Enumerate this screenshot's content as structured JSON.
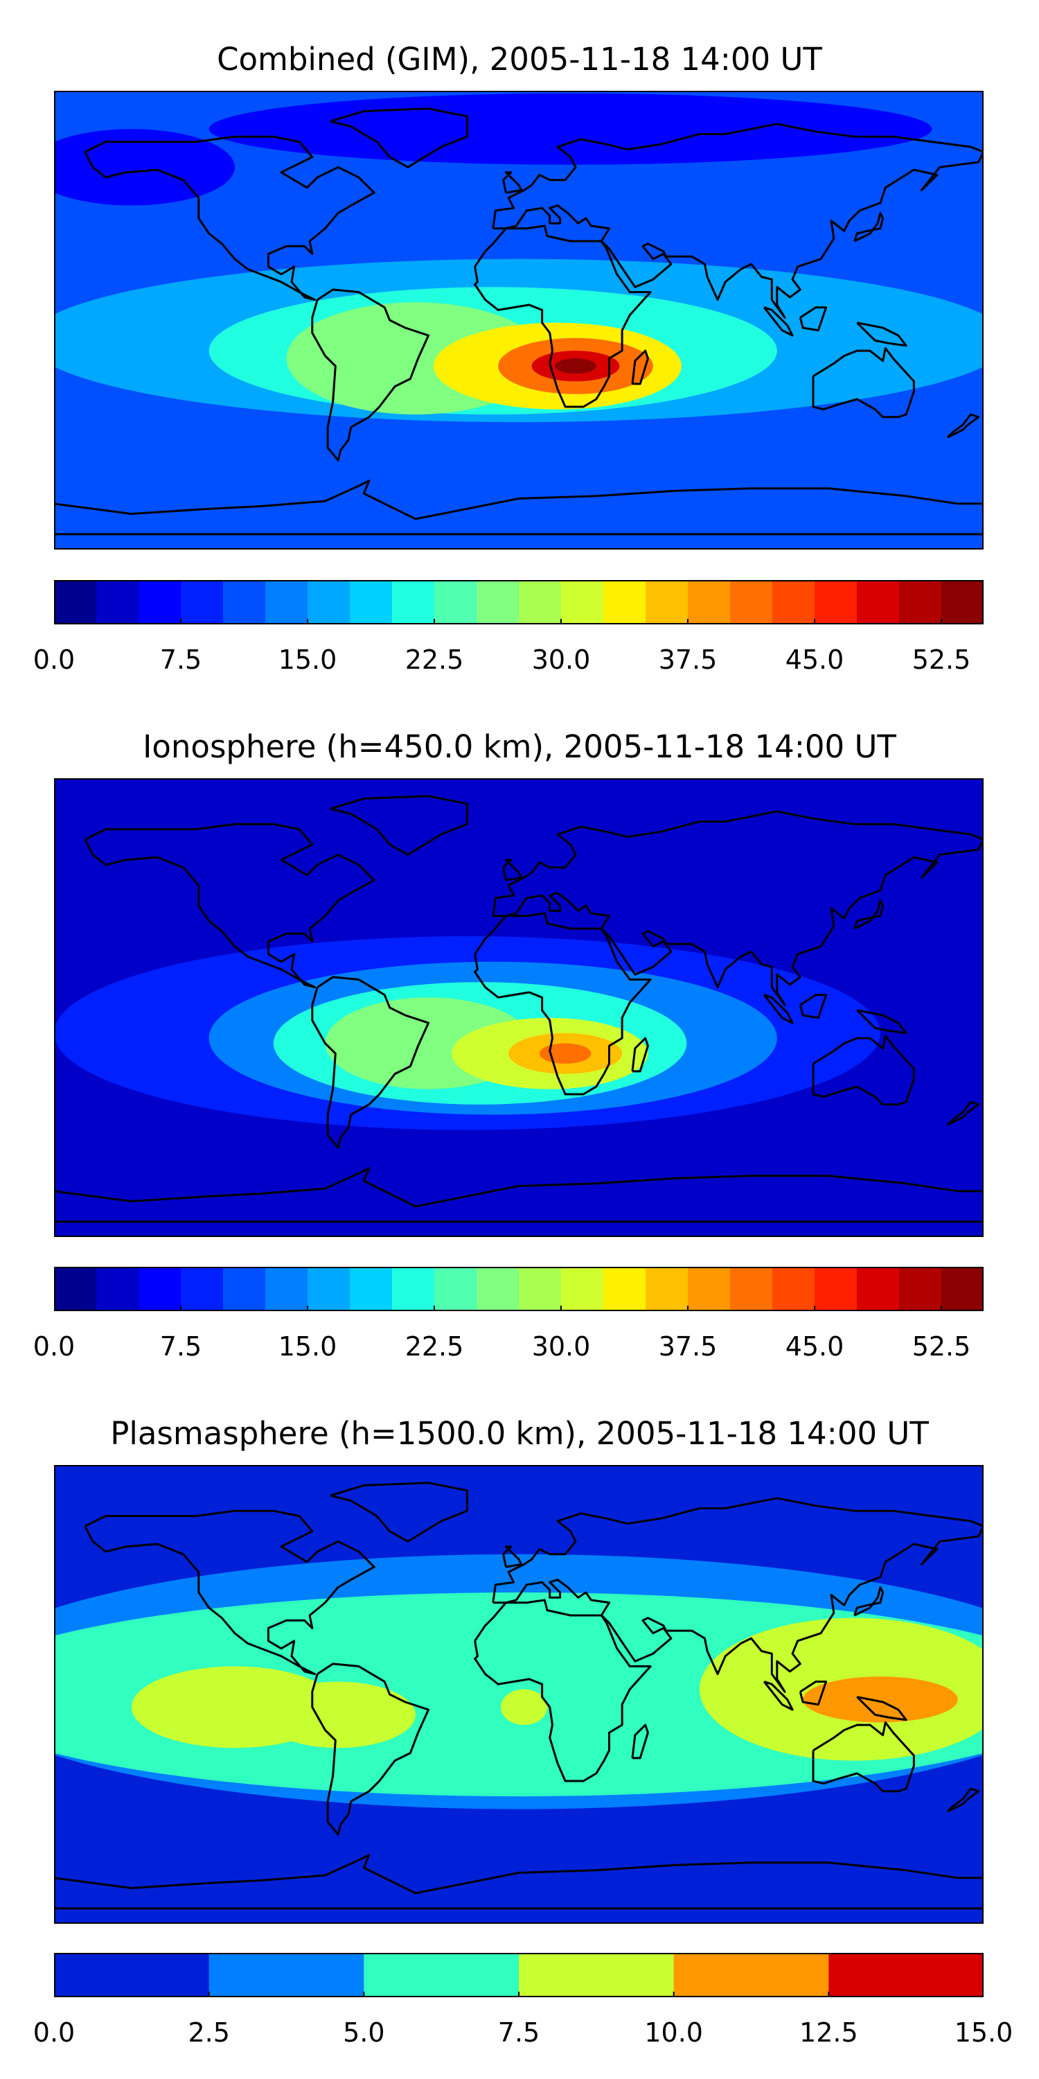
{
  "chart_data": [
    {
      "type": "heatmap",
      "title": "Combined (GIM), 2005-11-18 14:00 UT",
      "quantity_range": [
        0,
        55
      ],
      "colorbar": {
        "levels": [
          0,
          2.5,
          5,
          7.5,
          10,
          12.5,
          15,
          17.5,
          20,
          22.5,
          25,
          27.5,
          30,
          32.5,
          35,
          37.5,
          40,
          42.5,
          45,
          47.5,
          50,
          52.5,
          55
        ],
        "colors": [
          "#00008f",
          "#0000c8",
          "#0000ff",
          "#0020ff",
          "#0050ff",
          "#0080ff",
          "#00a8ff",
          "#00d0ff",
          "#20ffe0",
          "#50ffb0",
          "#80ff80",
          "#a8ff50",
          "#d0ff30",
          "#fff000",
          "#ffc000",
          "#ff9800",
          "#ff7000",
          "#ff4800",
          "#ff2000",
          "#d80000",
          "#b00000",
          "#8b0000"
        ],
        "tick_labels": [
          "0.0",
          "7.5",
          "15.0",
          "22.5",
          "30.0",
          "37.5",
          "45.0",
          "52.5"
        ],
        "tick_values": [
          0,
          7.5,
          15,
          22.5,
          30,
          37.5,
          45,
          52.5
        ]
      },
      "background_level": 10,
      "features": [
        {
          "name": "equatorial-band",
          "level": 17,
          "lon": 0,
          "lat": -8,
          "rx": 190,
          "ry": 32
        },
        {
          "name": "equatorial-crest",
          "level": 22,
          "lon": -10,
          "lat": -12,
          "rx": 110,
          "ry": 25
        },
        {
          "name": "south-america-peak",
          "level": 27,
          "lon": -40,
          "lat": -15,
          "rx": 50,
          "ry": 22
        },
        {
          "name": "africa-peak-outer",
          "level": 33,
          "lon": 15,
          "lat": -18,
          "rx": 48,
          "ry": 17
        },
        {
          "name": "africa-peak",
          "level": 40,
          "lon": 22,
          "lat": -18,
          "rx": 30,
          "ry": 11
        },
        {
          "name": "africa-peak-inner",
          "level": 48,
          "lon": 22,
          "lat": -18,
          "rx": 17,
          "ry": 6
        },
        {
          "name": "africa-peak-core",
          "level": 53,
          "lon": 22,
          "lat": -18,
          "rx": 8,
          "ry": 3
        },
        {
          "name": "north-atlantic-trough",
          "level": 6,
          "lon": 20,
          "lat": 75,
          "rx": 140,
          "ry": 14
        },
        {
          "name": "pacific-high-lat-trough",
          "level": 7,
          "lon": -150,
          "lat": 60,
          "rx": 40,
          "ry": 15
        }
      ]
    },
    {
      "type": "heatmap",
      "title": "Ionosphere  (h=450.0 km), 2005-11-18 14:00 UT",
      "quantity_range": [
        0,
        55
      ],
      "colorbar": {
        "levels": [
          0,
          2.5,
          5,
          7.5,
          10,
          12.5,
          15,
          17.5,
          20,
          22.5,
          25,
          27.5,
          30,
          32.5,
          35,
          37.5,
          40,
          42.5,
          45,
          47.5,
          50,
          52.5,
          55
        ],
        "colors": [
          "#00008f",
          "#0000c8",
          "#0000ff",
          "#0020ff",
          "#0050ff",
          "#0080ff",
          "#00a8ff",
          "#00d0ff",
          "#20ffe0",
          "#50ffb0",
          "#80ff80",
          "#a8ff50",
          "#d0ff30",
          "#fff000",
          "#ffc000",
          "#ff9800",
          "#ff7000",
          "#ff4800",
          "#ff2000",
          "#d80000",
          "#b00000",
          "#8b0000"
        ],
        "tick_labels": [
          "0.0",
          "7.5",
          "15.0",
          "22.5",
          "30.0",
          "37.5",
          "45.0",
          "52.5"
        ],
        "tick_values": [
          0,
          7.5,
          15,
          22.5,
          30,
          37.5,
          45,
          52.5
        ]
      },
      "background_level": 4,
      "features": [
        {
          "name": "mid-band",
          "level": 8,
          "lon": -20,
          "lat": -10,
          "rx": 160,
          "ry": 38
        },
        {
          "name": "equatorial-band",
          "level": 14,
          "lon": -10,
          "lat": -12,
          "rx": 110,
          "ry": 30
        },
        {
          "name": "equatorial-crest",
          "level": 20,
          "lon": -15,
          "lat": -14,
          "rx": 80,
          "ry": 24
        },
        {
          "name": "south-america-peak",
          "level": 26,
          "lon": -35,
          "lat": -14,
          "rx": 40,
          "ry": 18
        },
        {
          "name": "africa-peak-outer",
          "level": 32,
          "lon": 12,
          "lat": -18,
          "rx": 38,
          "ry": 14
        },
        {
          "name": "africa-peak",
          "level": 37,
          "lon": 18,
          "lat": -18,
          "rx": 22,
          "ry": 8
        },
        {
          "name": "africa-peak-core",
          "level": 41,
          "lon": 18,
          "lat": -18,
          "rx": 10,
          "ry": 4
        }
      ]
    },
    {
      "type": "heatmap",
      "title": "Plasmasphere (h=1500.0 km), 2005-11-18 14:00 UT",
      "quantity_range": [
        0,
        15
      ],
      "colorbar": {
        "levels": [
          0,
          2.5,
          5,
          7.5,
          10,
          12.5,
          15
        ],
        "colors": [
          "#0020d8",
          "#0080ff",
          "#30ffc0",
          "#c8ff30",
          "#ff9800",
          "#d80000"
        ],
        "tick_labels": [
          "0.0",
          "2.5",
          "5.0",
          "7.5",
          "10.0",
          "12.5",
          "15.0"
        ],
        "tick_values": [
          0,
          2.5,
          5,
          7.5,
          10,
          12.5,
          15
        ]
      },
      "background_level": 1,
      "features": [
        {
          "name": "mid-latitude-band",
          "level": 4,
          "lon": 0,
          "lat": 5,
          "rx": 220,
          "ry": 50
        },
        {
          "name": "tropical-band",
          "level": 6,
          "lon": 0,
          "lat": 0,
          "rx": 220,
          "ry": 40
        },
        {
          "name": "east-pacific-high",
          "level": 8.5,
          "lon": -110,
          "lat": -5,
          "rx": 40,
          "ry": 16
        },
        {
          "name": "east-pacific-high-2",
          "level": 8.5,
          "lon": -70,
          "lat": -8,
          "rx": 30,
          "ry": 13
        },
        {
          "name": "atlantic-spot",
          "level": 8.5,
          "lon": 2,
          "lat": -5,
          "rx": 9,
          "ry": 7
        },
        {
          "name": "asia-high",
          "level": 8.5,
          "lon": 130,
          "lat": 2,
          "rx": 60,
          "ry": 28
        },
        {
          "name": "indonesia-peak",
          "level": 11,
          "lon": 140,
          "lat": -2,
          "rx": 30,
          "ry": 9
        }
      ]
    }
  ]
}
